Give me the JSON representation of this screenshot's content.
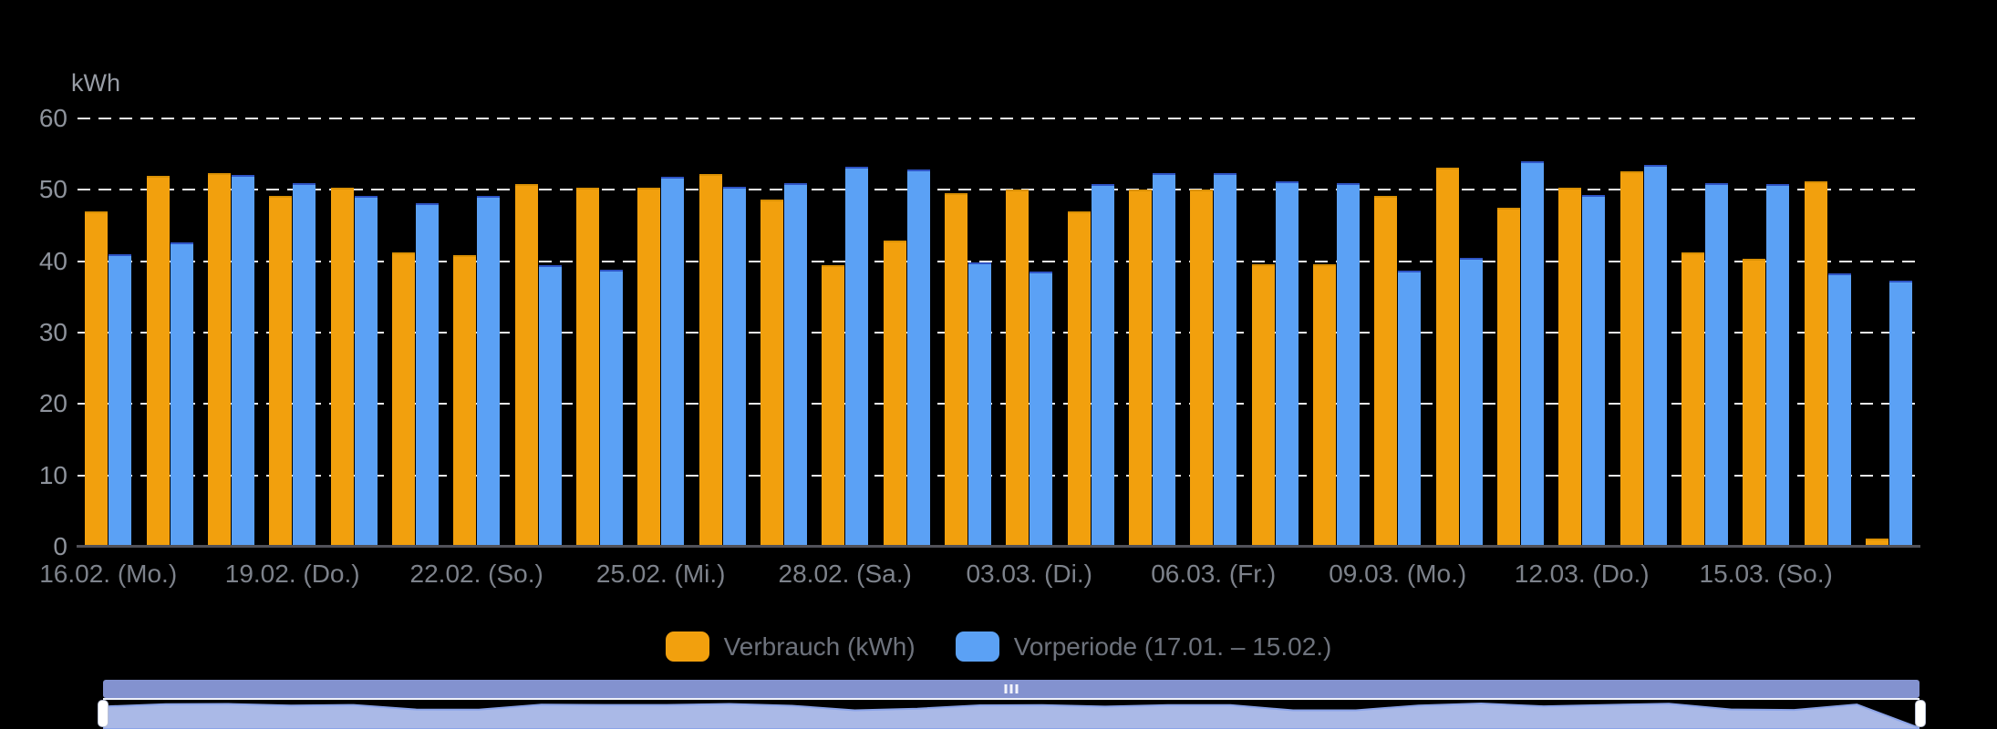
{
  "chart_data": {
    "type": "bar",
    "title": "",
    "ylabel": "kWh",
    "xlabel": "",
    "ylim": [
      0,
      60
    ],
    "y_ticks": [
      0,
      10,
      20,
      30,
      40,
      50,
      60
    ],
    "grid": "dashed-horizontal-white",
    "legend_position": "bottom",
    "background": "#000000",
    "categories": [
      "16.02.",
      "17.02.",
      "18.02.",
      "19.02.",
      "20.02.",
      "21.02.",
      "22.02.",
      "23.02.",
      "24.02.",
      "25.02.",
      "26.02.",
      "27.02.",
      "28.02.",
      "01.03.",
      "02.03.",
      "03.03.",
      "04.03.",
      "05.03.",
      "06.03.",
      "07.03.",
      "08.03.",
      "09.03.",
      "10.03.",
      "11.03.",
      "12.03.",
      "13.03.",
      "14.03.",
      "15.03.",
      "16.03.",
      "17.03."
    ],
    "x_tick_labels": [
      "16.02. (Mo.)",
      "19.02. (Do.)",
      "22.02. (So.)",
      "25.02. (Mi.)",
      "28.02. (Sa.)",
      "03.03. (Di.)",
      "06.03. (Fr.)",
      "09.03. (Mo.)",
      "12.03. (Do.)",
      "15.03. (So.)"
    ],
    "x_tick_every": 3,
    "series": [
      {
        "name": "Verbrauch (kWh)",
        "color": "#f2a00d",
        "values": [
          47.0,
          52.0,
          52.3,
          49.2,
          50.3,
          41.2,
          40.8,
          50.8,
          50.3,
          50.3,
          52.2,
          48.6,
          39.5,
          42.9,
          49.5,
          50.0,
          47.0,
          50.0,
          50.0,
          39.6,
          39.6,
          49.1,
          53.1,
          47.5,
          50.3,
          52.6,
          41.2,
          40.3,
          51.2,
          1.2
        ]
      },
      {
        "name": "Vorperiode (17.01. – 15.02.)",
        "color": "#5ba1f5",
        "values": [
          41.0,
          42.6,
          52.1,
          51.0,
          49.1,
          48.1,
          49.1,
          39.5,
          38.8,
          51.9,
          50.4,
          50.9,
          53.2,
          52.9,
          39.9,
          38.6,
          50.8,
          52.3,
          52.3,
          51.2,
          51.0,
          38.7,
          40.5,
          54.0,
          49.3,
          53.5,
          50.9,
          50.8,
          38.3,
          37.3
        ]
      }
    ]
  },
  "colors": {
    "axis_line": "#515158",
    "gridline": "#ececec",
    "y_label": "#8e939c",
    "x_label": "#7d828b",
    "legend_text": "#6e737d",
    "scrollbar_thumb": "#8392cf",
    "navigator_area_fill": "#aab9e7",
    "navigator_area_stroke": "#8ca4e8",
    "navigator_handle": "#ffffff"
  },
  "navigator": {
    "description": "range scrollbar with area preview of consumption",
    "range_full": true
  }
}
